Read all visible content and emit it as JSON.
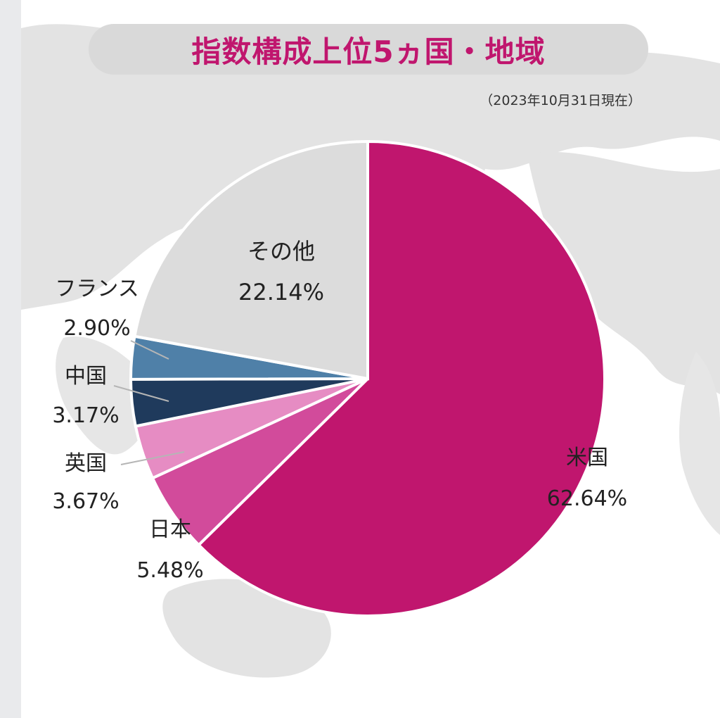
{
  "header": {
    "title": "指数構成上位5ヵ国・地域",
    "as_of": "（2023年10月31日現在）"
  },
  "colors": {
    "us": "#c0166e",
    "japan": "#d24b9b",
    "uk": "#e68cc3",
    "china": "#1f3a5c",
    "france": "#4f80a8",
    "other": "#dcdcdc"
  },
  "chart_data": {
    "type": "pie",
    "title": "指数構成上位5ヵ国・地域",
    "subtitle": "（2023年10月31日現在）",
    "slices": [
      {
        "name": "米国",
        "value": 62.64,
        "label": "62.64%",
        "color": "#c0166e"
      },
      {
        "name": "日本",
        "value": 5.48,
        "label": "5.48%",
        "color": "#d24b9b"
      },
      {
        "name": "英国",
        "value": 3.67,
        "label": "3.67%",
        "color": "#e68cc3"
      },
      {
        "name": "中国",
        "value": 3.17,
        "label": "3.17%",
        "color": "#1f3a5c"
      },
      {
        "name": "フランス",
        "value": 2.9,
        "label": "2.90%",
        "color": "#4f80a8"
      },
      {
        "name": "その他",
        "value": 22.14,
        "label": "22.14%",
        "color": "#dcdcdc"
      }
    ]
  }
}
